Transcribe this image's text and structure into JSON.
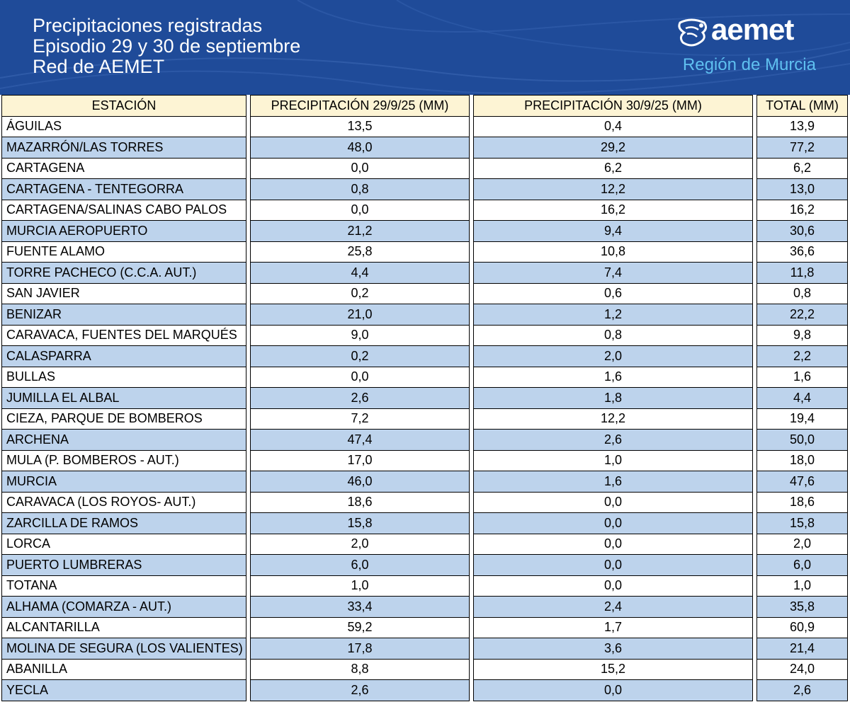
{
  "header": {
    "title_line1": "Precipitaciones registradas",
    "title_line2": "Episodio 29 y 30 de septiembre",
    "title_line3": "Red de AEMET",
    "logo_text": "aemet",
    "logo_region": "Región de Murcia"
  },
  "colors": {
    "header_bg": "#1f4b99",
    "table_header_bg": "#fdf4d4",
    "row_alt_bg": "#bdd3ec",
    "region_text": "#5fc0f0"
  },
  "table": {
    "columns": [
      "ESTACIÓN",
      "PRECIPITACIÓN 29/9/25 (MM)",
      "PRECIPITACIÓN 30/9/25 (MM)",
      "TOTAL (MM)"
    ],
    "rows": [
      {
        "station": "ÁGUILAS",
        "d29": "13,5",
        "d30": "0,4",
        "total": "13,9"
      },
      {
        "station": "MAZARRÓN/LAS TORRES",
        "d29": "48,0",
        "d30": "29,2",
        "total": "77,2"
      },
      {
        "station": "CARTAGENA",
        "d29": "0,0",
        "d30": "6,2",
        "total": "6,2"
      },
      {
        "station": "CARTAGENA - TENTEGORRA",
        "d29": "0,8",
        "d30": "12,2",
        "total": "13,0"
      },
      {
        "station": "CARTAGENA/SALINAS CABO PALOS",
        "d29": "0,0",
        "d30": "16,2",
        "total": "16,2"
      },
      {
        "station": "MURCIA AEROPUERTO",
        "d29": "21,2",
        "d30": "9,4",
        "total": "30,6"
      },
      {
        "station": "FUENTE ALAMO",
        "d29": "25,8",
        "d30": "10,8",
        "total": "36,6"
      },
      {
        "station": "TORRE PACHECO (C.C.A. AUT.)",
        "d29": "4,4",
        "d30": "7,4",
        "total": "11,8"
      },
      {
        "station": "SAN JAVIER",
        "d29": "0,2",
        "d30": "0,6",
        "total": "0,8"
      },
      {
        "station": "BENIZAR",
        "d29": "21,0",
        "d30": "1,2",
        "total": "22,2"
      },
      {
        "station": "CARAVACA, FUENTES DEL MARQUÉS",
        "d29": "9,0",
        "d30": "0,8",
        "total": "9,8"
      },
      {
        "station": "CALASPARRA",
        "d29": "0,2",
        "d30": "2,0",
        "total": "2,2"
      },
      {
        "station": "BULLAS",
        "d29": "0,0",
        "d30": "1,6",
        "total": "1,6"
      },
      {
        "station": "JUMILLA  EL ALBAL",
        "d29": "2,6",
        "d30": "1,8",
        "total": "4,4"
      },
      {
        "station": "CIEZA, PARQUE DE BOMBEROS",
        "d29": "7,2",
        "d30": "12,2",
        "total": "19,4"
      },
      {
        "station": "ARCHENA",
        "d29": "47,4",
        "d30": "2,6",
        "total": "50,0"
      },
      {
        "station": "MULA (P. BOMBEROS - AUT.)",
        "d29": "17,0",
        "d30": "1,0",
        "total": "18,0"
      },
      {
        "station": "MURCIA",
        "d29": "46,0",
        "d30": "1,6",
        "total": "47,6"
      },
      {
        "station": "CARAVACA (LOS ROYOS- AUT.)",
        "d29": "18,6",
        "d30": "0,0",
        "total": "18,6"
      },
      {
        "station": "ZARCILLA DE RAMOS",
        "d29": "15,8",
        "d30": "0,0",
        "total": "15,8"
      },
      {
        "station": "LORCA",
        "d29": "2,0",
        "d30": "0,0",
        "total": "2,0"
      },
      {
        "station": "PUERTO LUMBRERAS",
        "d29": "6,0",
        "d30": "0,0",
        "total": "6,0"
      },
      {
        "station": "TOTANA",
        "d29": "1,0",
        "d30": "0,0",
        "total": "1,0"
      },
      {
        "station": "ALHAMA (COMARZA - AUT.)",
        "d29": "33,4",
        "d30": "2,4",
        "total": "35,8"
      },
      {
        "station": "ALCANTARILLA",
        "d29": "59,2",
        "d30": "1,7",
        "total": "60,9"
      },
      {
        "station": "MOLINA DE SEGURA (LOS VALIENTES)",
        "d29": "17,8",
        "d30": "3,6",
        "total": "21,4"
      },
      {
        "station": "ABANILLA",
        "d29": "8,8",
        "d30": "15,2",
        "total": "24,0"
      },
      {
        "station": "YECLA",
        "d29": "2,6",
        "d30": "0,0",
        "total": "2,6"
      }
    ]
  }
}
